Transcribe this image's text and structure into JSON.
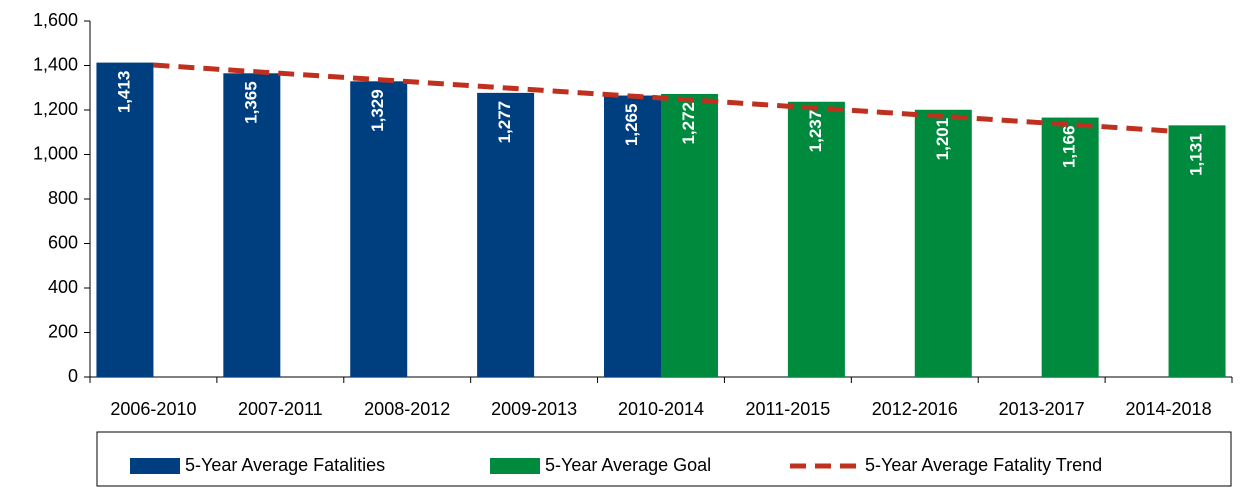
{
  "chart_data": {
    "type": "bar",
    "categories": [
      "2006-2010",
      "2007-2011",
      "2008-2012",
      "2009-2013",
      "2010-2014",
      "2011-2015",
      "2012-2016",
      "2013-2017",
      "2014-2018"
    ],
    "series": [
      {
        "name": "5-Year Average Fatalities",
        "color": "#003f7f",
        "values": [
          1413,
          1365,
          1329,
          1277,
          1265,
          null,
          null,
          null,
          null
        ],
        "value_labels": [
          "1,413",
          "1,365",
          "1,329",
          "1,277",
          "1,265",
          null,
          null,
          null,
          null
        ]
      },
      {
        "name": "5-Year Average Goal",
        "color": "#008a3e",
        "values": [
          null,
          null,
          null,
          null,
          1272,
          1237,
          1201,
          1166,
          1131
        ],
        "value_labels": [
          null,
          null,
          null,
          null,
          "1,272",
          "1,237",
          "1,201",
          "1,166",
          "1,131"
        ]
      },
      {
        "name": "5-Year Average Fatality Trend",
        "color": "#c0301f",
        "type": "line",
        "dashed": true,
        "values": [
          1402,
          1365,
          1328,
          1291,
          1254,
          1217,
          1180,
          1143,
          1106
        ]
      }
    ],
    "ylim": [
      0,
      1600
    ],
    "yticks": [
      0,
      200,
      400,
      600,
      800,
      {
        "value": 1000,
        "label": "1,000"
      },
      {
        "value": 1200,
        "label": "1,200"
      },
      {
        "value": 1400,
        "label": "1,400"
      },
      {
        "value": 1600,
        "label": "1,600"
      }
    ],
    "grid": false,
    "legend": "bottom"
  }
}
